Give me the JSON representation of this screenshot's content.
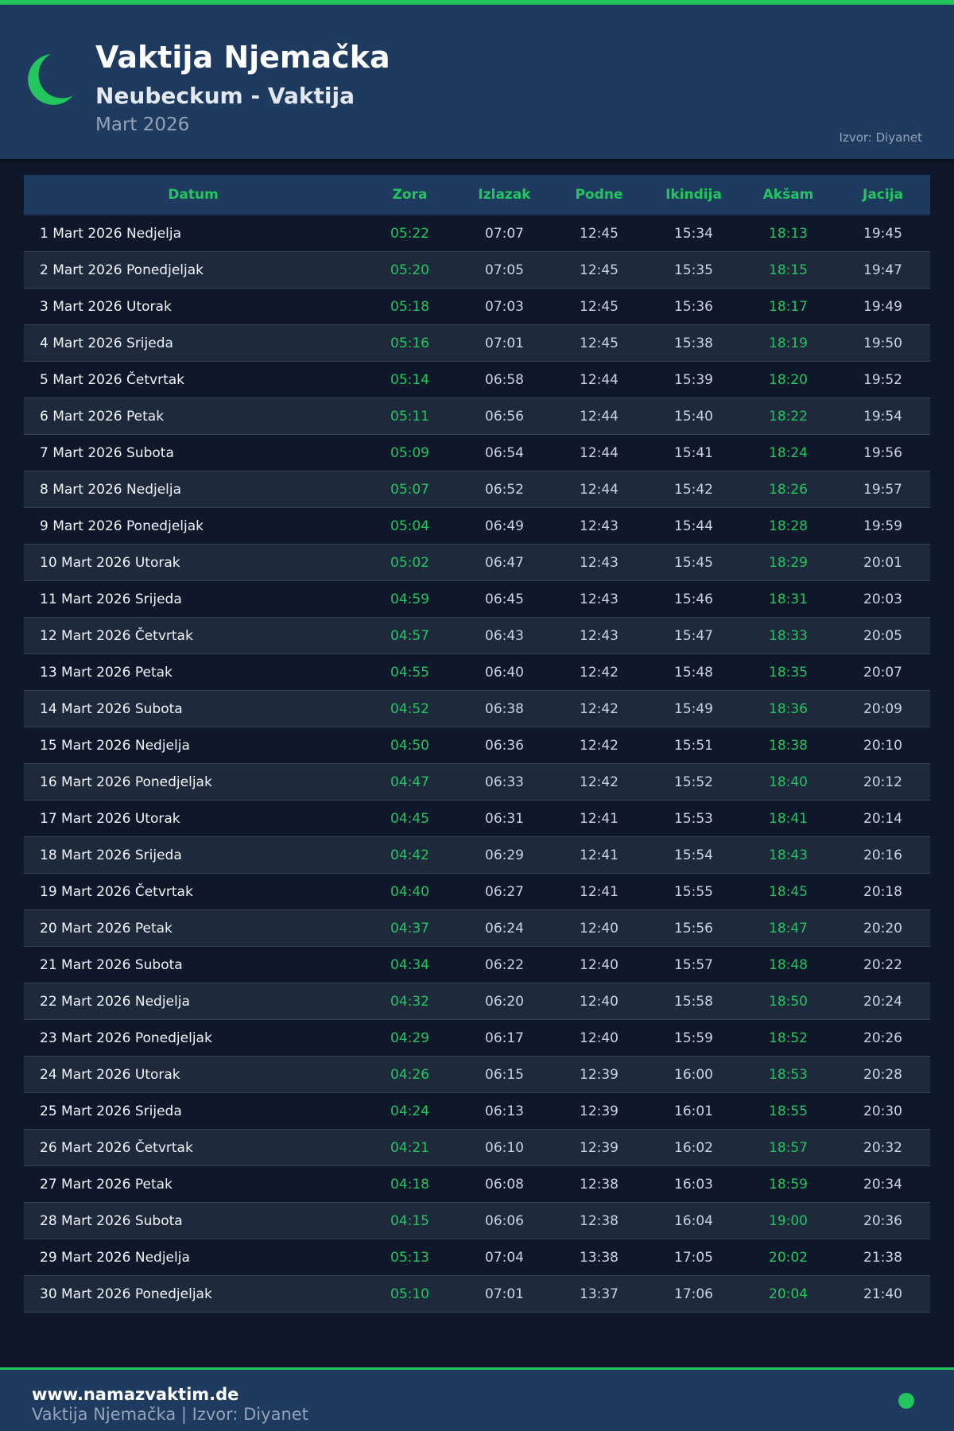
{
  "header": {
    "title": "Vaktija Njemačka",
    "subtitle": "Neubeckum - Vaktija",
    "month": "Mart 2026",
    "source": "Izvor: Diyanet",
    "icon": "crescent-moon-icon"
  },
  "colors": {
    "accent": "#22c55e",
    "header_bg": "#1e3a5f",
    "page_bg": "#0f172a"
  },
  "table": {
    "columns": [
      "Datum",
      "Zora",
      "Izlazak",
      "Podne",
      "Ikindija",
      "Akšam",
      "Jacija"
    ],
    "rows": [
      [
        "1 Mart 2026 Nedjelja",
        "05:22",
        "07:07",
        "12:45",
        "15:34",
        "18:13",
        "19:45"
      ],
      [
        "2 Mart 2026 Ponedjeljak",
        "05:20",
        "07:05",
        "12:45",
        "15:35",
        "18:15",
        "19:47"
      ],
      [
        "3 Mart 2026 Utorak",
        "05:18",
        "07:03",
        "12:45",
        "15:36",
        "18:17",
        "19:49"
      ],
      [
        "4 Mart 2026 Srijeda",
        "05:16",
        "07:01",
        "12:45",
        "15:38",
        "18:19",
        "19:50"
      ],
      [
        "5 Mart 2026 Četvrtak",
        "05:14",
        "06:58",
        "12:44",
        "15:39",
        "18:20",
        "19:52"
      ],
      [
        "6 Mart 2026 Petak",
        "05:11",
        "06:56",
        "12:44",
        "15:40",
        "18:22",
        "19:54"
      ],
      [
        "7 Mart 2026 Subota",
        "05:09",
        "06:54",
        "12:44",
        "15:41",
        "18:24",
        "19:56"
      ],
      [
        "8 Mart 2026 Nedjelja",
        "05:07",
        "06:52",
        "12:44",
        "15:42",
        "18:26",
        "19:57"
      ],
      [
        "9 Mart 2026 Ponedjeljak",
        "05:04",
        "06:49",
        "12:43",
        "15:44",
        "18:28",
        "19:59"
      ],
      [
        "10 Mart 2026 Utorak",
        "05:02",
        "06:47",
        "12:43",
        "15:45",
        "18:29",
        "20:01"
      ],
      [
        "11 Mart 2026 Srijeda",
        "04:59",
        "06:45",
        "12:43",
        "15:46",
        "18:31",
        "20:03"
      ],
      [
        "12 Mart 2026 Četvrtak",
        "04:57",
        "06:43",
        "12:43",
        "15:47",
        "18:33",
        "20:05"
      ],
      [
        "13 Mart 2026 Petak",
        "04:55",
        "06:40",
        "12:42",
        "15:48",
        "18:35",
        "20:07"
      ],
      [
        "14 Mart 2026 Subota",
        "04:52",
        "06:38",
        "12:42",
        "15:49",
        "18:36",
        "20:09"
      ],
      [
        "15 Mart 2026 Nedjelja",
        "04:50",
        "06:36",
        "12:42",
        "15:51",
        "18:38",
        "20:10"
      ],
      [
        "16 Mart 2026 Ponedjeljak",
        "04:47",
        "06:33",
        "12:42",
        "15:52",
        "18:40",
        "20:12"
      ],
      [
        "17 Mart 2026 Utorak",
        "04:45",
        "06:31",
        "12:41",
        "15:53",
        "18:41",
        "20:14"
      ],
      [
        "18 Mart 2026 Srijeda",
        "04:42",
        "06:29",
        "12:41",
        "15:54",
        "18:43",
        "20:16"
      ],
      [
        "19 Mart 2026 Četvrtak",
        "04:40",
        "06:27",
        "12:41",
        "15:55",
        "18:45",
        "20:18"
      ],
      [
        "20 Mart 2026 Petak",
        "04:37",
        "06:24",
        "12:40",
        "15:56",
        "18:47",
        "20:20"
      ],
      [
        "21 Mart 2026 Subota",
        "04:34",
        "06:22",
        "12:40",
        "15:57",
        "18:48",
        "20:22"
      ],
      [
        "22 Mart 2026 Nedjelja",
        "04:32",
        "06:20",
        "12:40",
        "15:58",
        "18:50",
        "20:24"
      ],
      [
        "23 Mart 2026 Ponedjeljak",
        "04:29",
        "06:17",
        "12:40",
        "15:59",
        "18:52",
        "20:26"
      ],
      [
        "24 Mart 2026 Utorak",
        "04:26",
        "06:15",
        "12:39",
        "16:00",
        "18:53",
        "20:28"
      ],
      [
        "25 Mart 2026 Srijeda",
        "04:24",
        "06:13",
        "12:39",
        "16:01",
        "18:55",
        "20:30"
      ],
      [
        "26 Mart 2026 Četvrtak",
        "04:21",
        "06:10",
        "12:39",
        "16:02",
        "18:57",
        "20:32"
      ],
      [
        "27 Mart 2026 Petak",
        "04:18",
        "06:08",
        "12:38",
        "16:03",
        "18:59",
        "20:34"
      ],
      [
        "28 Mart 2026 Subota",
        "04:15",
        "06:06",
        "12:38",
        "16:04",
        "19:00",
        "20:36"
      ],
      [
        "29 Mart 2026 Nedjelja",
        "05:13",
        "07:04",
        "13:38",
        "17:05",
        "20:02",
        "21:38"
      ],
      [
        "30 Mart 2026 Ponedjeljak",
        "05:10",
        "07:01",
        "13:37",
        "17:06",
        "20:04",
        "21:40"
      ]
    ]
  },
  "footer": {
    "site": "www.namazvaktim.de",
    "text": "Vaktija Njemačka | Izvor: Diyanet",
    "icon": "status-dot-icon"
  }
}
